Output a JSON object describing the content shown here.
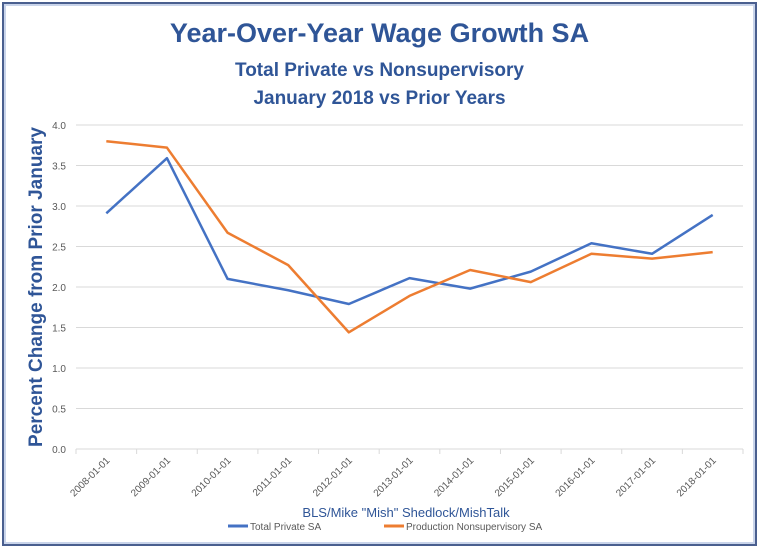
{
  "chart_data": {
    "type": "line",
    "title": "Year-Over-Year Wage Growth SA",
    "subtitle_1": "Total Private vs Nonsupervisory",
    "subtitle_2": "January 2018 vs Prior Years",
    "xlabel": "BLS/Mike \"Mish\" Shedlock/MishTalk",
    "ylabel": "Percent  Change from Prior January",
    "ylim": [
      0,
      4.0
    ],
    "yticks": [
      "0.0",
      "0.5",
      "1.0",
      "1.5",
      "2.0",
      "2.5",
      "3.0",
      "3.5",
      "4.0"
    ],
    "grid": true,
    "legend": "bottom",
    "categories": [
      "2008-01-01",
      "2009-01-01",
      "2010-01-01",
      "2011-01-01",
      "2012-01-01",
      "2013-01-01",
      "2014-01-01",
      "2015-01-01",
      "2016-01-01",
      "2017-01-01",
      "2018-01-01"
    ],
    "series": [
      {
        "name": "Total Private SA",
        "color": "#4472c4",
        "values": [
          2.91,
          3.59,
          2.1,
          1.96,
          1.79,
          2.11,
          1.98,
          2.19,
          2.54,
          2.41,
          2.89
        ]
      },
      {
        "name": "Production Nonsupervisory SA",
        "color": "#ed7d31",
        "values": [
          3.8,
          3.72,
          2.67,
          2.27,
          1.44,
          1.89,
          2.21,
          2.06,
          2.41,
          2.35,
          2.43
        ]
      }
    ]
  }
}
